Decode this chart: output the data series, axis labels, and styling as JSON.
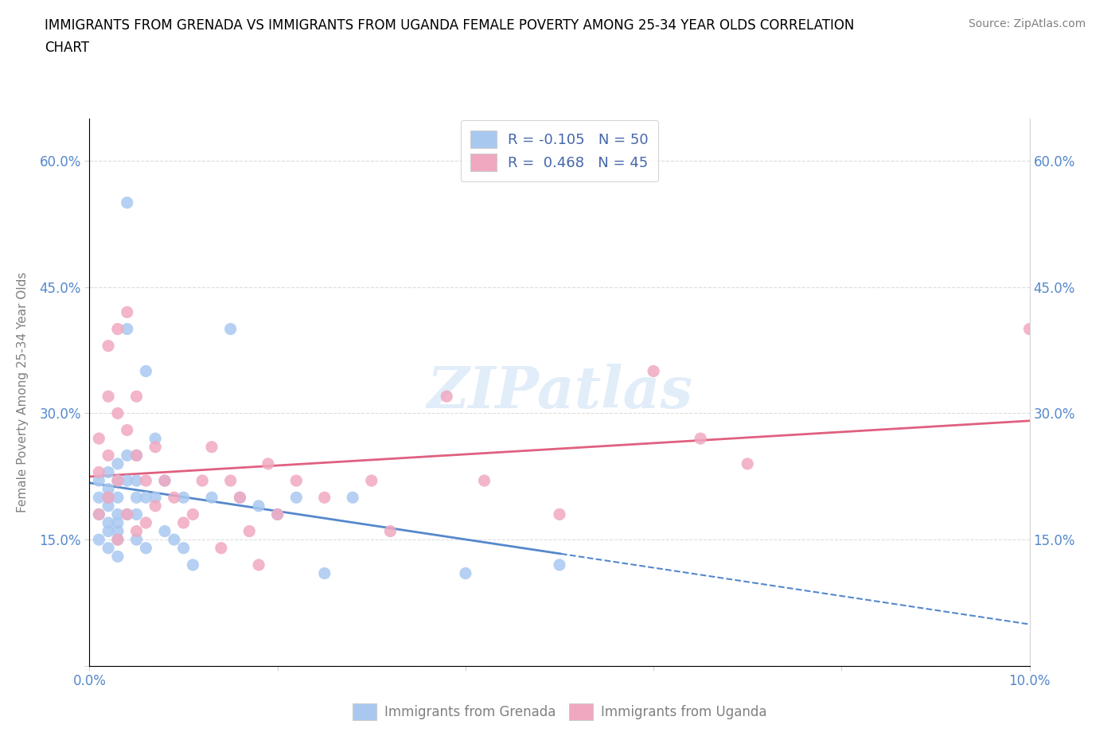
{
  "title_line1": "IMMIGRANTS FROM GRENADA VS IMMIGRANTS FROM UGANDA FEMALE POVERTY AMONG 25-34 YEAR OLDS CORRELATION",
  "title_line2": "CHART",
  "source": "Source: ZipAtlas.com",
  "ylabel": "Female Poverty Among 25-34 Year Olds",
  "xlim": [
    0.0,
    0.1
  ],
  "ylim": [
    0.0,
    0.65
  ],
  "x_ticks": [
    0.0,
    0.02,
    0.04,
    0.06,
    0.08,
    0.1
  ],
  "y_ticks": [
    0.0,
    0.15,
    0.3,
    0.45,
    0.6
  ],
  "grenada_color": "#a8c8f0",
  "uganda_color": "#f0a8c0",
  "grenada_line_color": "#5588cc",
  "uganda_line_color": "#e06080",
  "grenada_R": -0.105,
  "grenada_N": 50,
  "uganda_R": 0.468,
  "uganda_N": 45,
  "legend_label_grenada": "Immigrants from Grenada",
  "legend_label_uganda": "Immigrants from Uganda",
  "watermark": "ZIPatlas",
  "grenada_x": [
    0.001,
    0.001,
    0.001,
    0.001,
    0.002,
    0.002,
    0.002,
    0.002,
    0.002,
    0.002,
    0.002,
    0.003,
    0.003,
    0.003,
    0.003,
    0.003,
    0.003,
    0.003,
    0.003,
    0.004,
    0.004,
    0.004,
    0.004,
    0.004,
    0.005,
    0.005,
    0.005,
    0.005,
    0.005,
    0.006,
    0.006,
    0.006,
    0.007,
    0.007,
    0.008,
    0.008,
    0.009,
    0.01,
    0.01,
    0.011,
    0.013,
    0.015,
    0.016,
    0.018,
    0.02,
    0.022,
    0.025,
    0.028,
    0.04,
    0.05
  ],
  "grenada_y": [
    0.22,
    0.2,
    0.18,
    0.15,
    0.23,
    0.21,
    0.2,
    0.19,
    0.17,
    0.16,
    0.14,
    0.24,
    0.22,
    0.2,
    0.18,
    0.17,
    0.16,
    0.15,
    0.13,
    0.55,
    0.4,
    0.25,
    0.22,
    0.18,
    0.25,
    0.22,
    0.2,
    0.18,
    0.15,
    0.35,
    0.2,
    0.14,
    0.27,
    0.2,
    0.22,
    0.16,
    0.15,
    0.2,
    0.14,
    0.12,
    0.2,
    0.4,
    0.2,
    0.19,
    0.18,
    0.2,
    0.11,
    0.2,
    0.11,
    0.12
  ],
  "uganda_x": [
    0.001,
    0.001,
    0.001,
    0.002,
    0.002,
    0.002,
    0.002,
    0.003,
    0.003,
    0.003,
    0.003,
    0.004,
    0.004,
    0.004,
    0.005,
    0.005,
    0.005,
    0.006,
    0.006,
    0.007,
    0.007,
    0.008,
    0.009,
    0.01,
    0.011,
    0.012,
    0.013,
    0.014,
    0.015,
    0.016,
    0.017,
    0.018,
    0.019,
    0.02,
    0.022,
    0.025,
    0.03,
    0.032,
    0.038,
    0.042,
    0.05,
    0.06,
    0.065,
    0.07,
    0.1
  ],
  "uganda_y": [
    0.27,
    0.23,
    0.18,
    0.38,
    0.32,
    0.25,
    0.2,
    0.4,
    0.3,
    0.22,
    0.15,
    0.42,
    0.28,
    0.18,
    0.32,
    0.25,
    0.16,
    0.22,
    0.17,
    0.26,
    0.19,
    0.22,
    0.2,
    0.17,
    0.18,
    0.22,
    0.26,
    0.14,
    0.22,
    0.2,
    0.16,
    0.12,
    0.24,
    0.18,
    0.22,
    0.2,
    0.22,
    0.16,
    0.32,
    0.22,
    0.18,
    0.35,
    0.27,
    0.24,
    0.4
  ]
}
